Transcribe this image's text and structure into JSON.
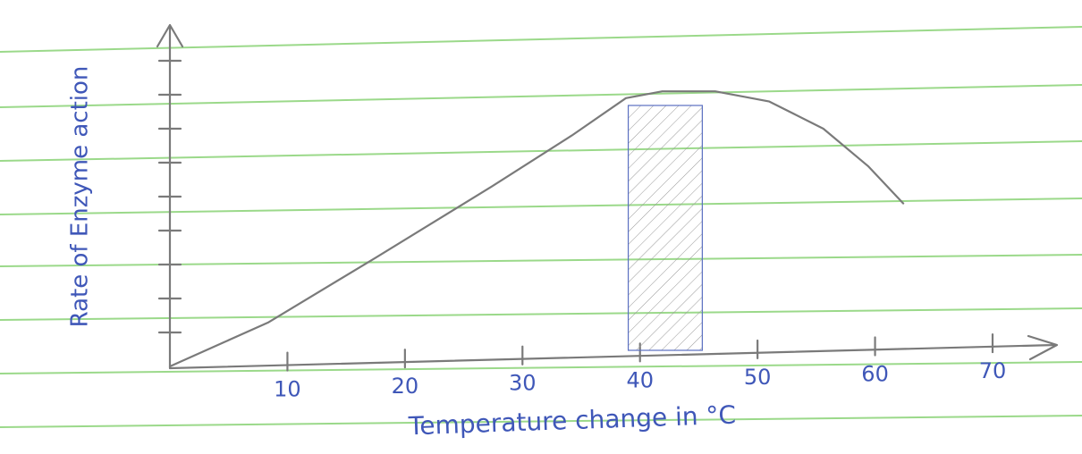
{
  "chart_data": {
    "type": "line",
    "x_label": "Temperature change in °C",
    "y_label": "Rate of Enzyme action",
    "x": [
      0,
      8.4,
      17.5,
      27.4,
      34.2,
      38.8,
      41.9,
      46.4,
      51.0,
      55.6,
      59.4,
      62.4
    ],
    "values": [
      0,
      1.3,
      3.2,
      5.3,
      6.8,
      7.9,
      8.1,
      8.1,
      7.8,
      7.0,
      5.9,
      4.8
    ],
    "color": "#7a7a7a",
    "shaded_range": [
      39,
      45.3
    ],
    "xlim": [
      0,
      70
    ],
    "xticks": [
      10,
      20,
      30,
      40,
      50,
      60,
      70
    ],
    "ylim": [
      0,
      10
    ],
    "yticks": [
      1,
      2,
      3,
      4,
      5,
      6,
      7,
      8,
      9
    ]
  }
}
